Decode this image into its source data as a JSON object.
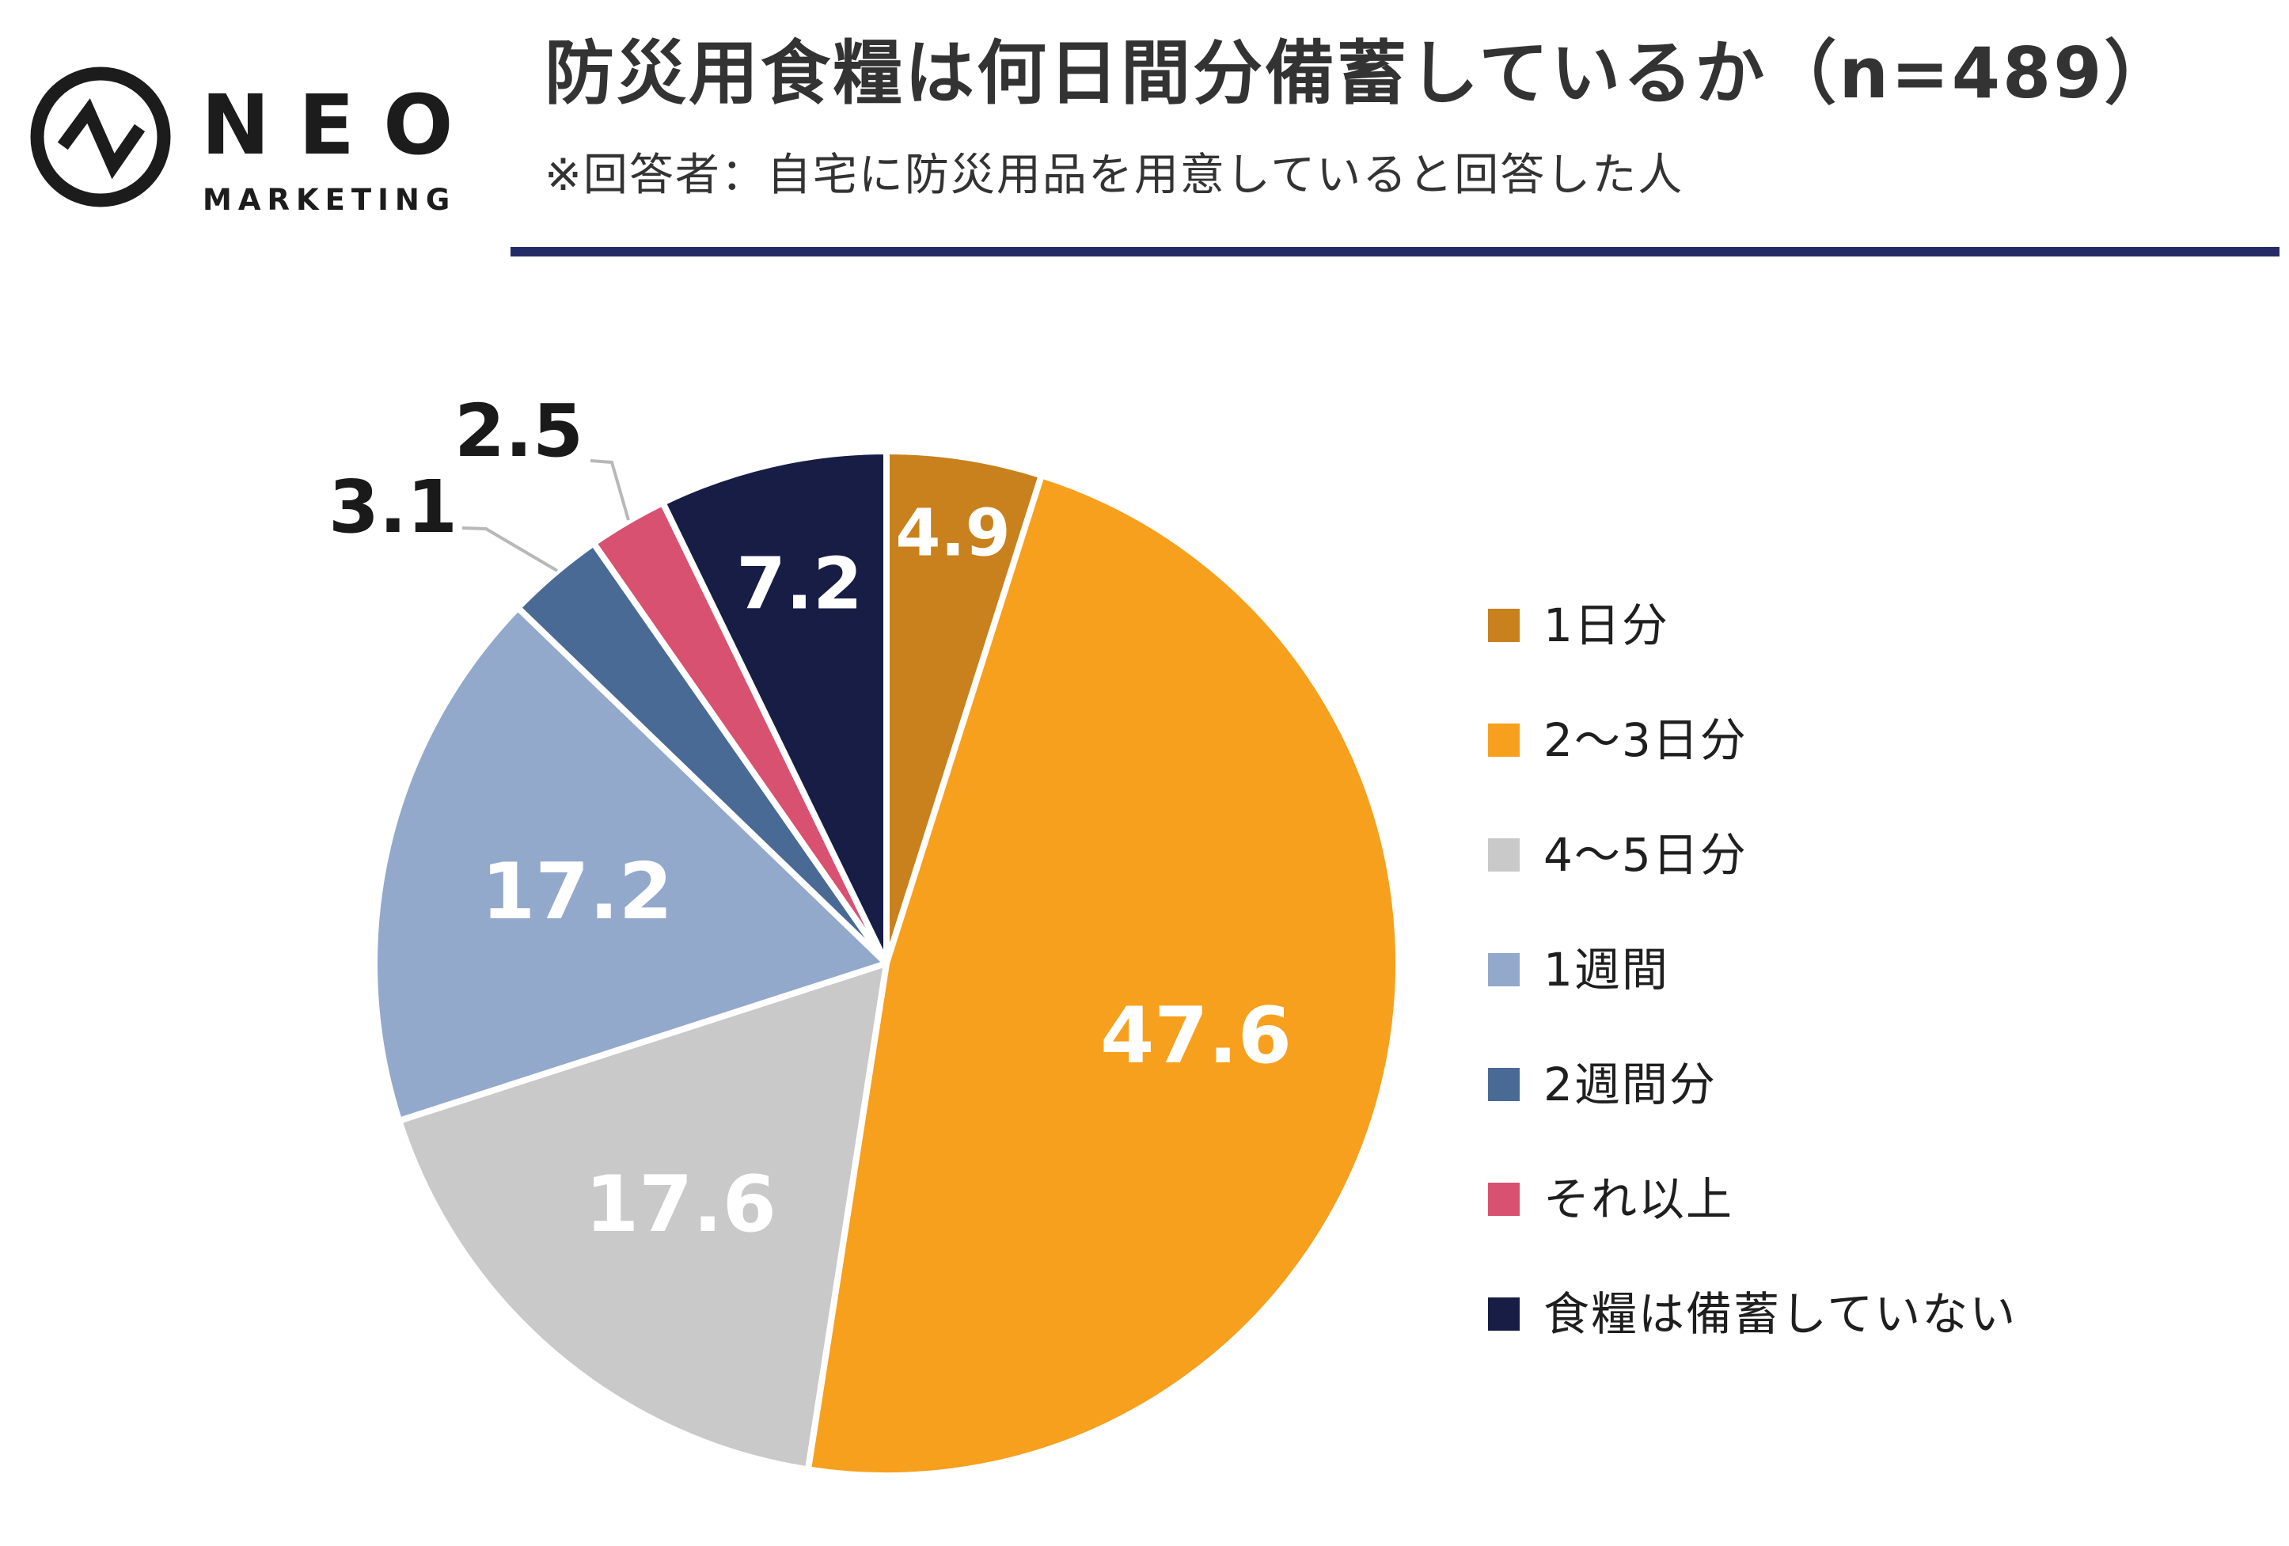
{
  "logo": {
    "brand": "NEO",
    "brand_sub": "MARKETING"
  },
  "header": {
    "title": "防災用食糧は何日間分備蓄しているか（n=489）",
    "subtitle": "※回答者：自宅に防災用品を用意していると回答した人"
  },
  "chart_data": {
    "type": "pie",
    "title": "防災用食糧は何日間分備蓄しているか",
    "n_label": "n=489",
    "unit": "%",
    "direction": "clockwise",
    "start_angle_deg": 0,
    "legend_position": "right",
    "series": [
      {
        "label": "1日分",
        "value": 4.9,
        "color": "#C8811C",
        "label_placement": "inside"
      },
      {
        "label": "2～3日分",
        "value": 47.6,
        "color": "#F7A01D",
        "label_placement": "inside"
      },
      {
        "label": "4～5日分",
        "value": 17.6,
        "color": "#C9C9C9",
        "label_placement": "inside"
      },
      {
        "label": "1週間",
        "value": 17.2,
        "color": "#92A9CC",
        "label_placement": "inside"
      },
      {
        "label": "2週間分",
        "value": 3.1,
        "color": "#4A6A96",
        "label_placement": "outside"
      },
      {
        "label": "それ以上",
        "value": 2.5,
        "color": "#D95170",
        "label_placement": "outside"
      },
      {
        "label": "食糧は備蓄していない",
        "value": 7.2,
        "color": "#171D45",
        "label_placement": "inside"
      }
    ]
  },
  "style": {
    "divider_color": "#252B66",
    "leader_line_color": "#B8B8B8",
    "inside_label_color": "#FFFFFF",
    "outside_label_color": "#1A1A1A",
    "logo_color": "#1C1C1C",
    "background": "#FFFFFF"
  }
}
